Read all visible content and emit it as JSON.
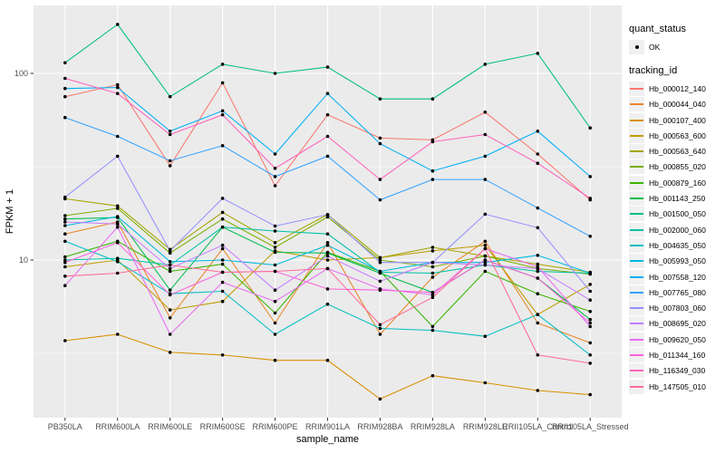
{
  "figure": {
    "y_axis_title": "FPKM + 1",
    "x_axis_title": "sample_name",
    "legend": {
      "quant_status_title": "quant_status",
      "quant_ok_label": "OK",
      "tracking_title": "tracking_id"
    },
    "colors": {
      "panel_bg": "#EBEBEB",
      "grid": "#FFFFFF",
      "tick_mark": "#333333",
      "axis_text": "#4D4D4D",
      "title_text": "#000000",
      "legend_key_bg": "#F0F0F0",
      "point": "#000000"
    }
  },
  "chart_data": {
    "type": "line",
    "title": "",
    "xlabel": "sample_name",
    "ylabel": "FPKM + 1",
    "y_scale": "log10",
    "ylim": [
      1.4,
      230
    ],
    "y_major_ticks": [
      100,
      10
    ],
    "y_minor_ticks": [
      31.6,
      3.16
    ],
    "grid": "on",
    "legend_position": "right",
    "point_shape": "filled-black-circle",
    "quant_status": "OK",
    "categories": [
      "PB350LA",
      "RRIM600LA",
      "RRIM600LE",
      "RRIM600SE",
      "RRIM600PE",
      "RRIM901LA",
      "RRIM928BA",
      "RRIM928LA",
      "RRIM928LE",
      "RRII105LA_Control",
      "RRII105LA_Stressed"
    ],
    "series": [
      {
        "name": "Hb_000012_140",
        "color": "#F8766D",
        "values": [
          75,
          87,
          32,
          89,
          25,
          60,
          45,
          44,
          62,
          37,
          21
        ]
      },
      {
        "name": "Hb_000044_040",
        "color": "#E88526",
        "values": [
          13.8,
          16,
          4.9,
          11.5,
          4.6,
          12.4,
          4,
          8.1,
          12.6,
          4.6,
          3.6
        ]
      },
      {
        "name": "Hb_000107_400",
        "color": "#D89000",
        "values": [
          3.7,
          4,
          3.2,
          3.1,
          2.9,
          2.9,
          1.8,
          2.4,
          2.2,
          2,
          1.9
        ]
      },
      {
        "name": "Hb_000563_600",
        "color": "#C09B00",
        "values": [
          9.2,
          10,
          5.4,
          6,
          11.2,
          10,
          10.3,
          11.2,
          12,
          5.1,
          7.4
        ]
      },
      {
        "name": "Hb_000563_640",
        "color": "#A3A500",
        "values": [
          21.3,
          19.5,
          11.4,
          18,
          12.4,
          17.5,
          10.3,
          11.7,
          10.5,
          9.5,
          8.6
        ]
      },
      {
        "name": "Hb_000855_020",
        "color": "#7CAE00",
        "values": [
          17.3,
          18.9,
          10.9,
          16.6,
          11.7,
          17,
          10,
          9.2,
          10.5,
          9,
          8.4
        ]
      },
      {
        "name": "Hb_000879_160",
        "color": "#39B600",
        "values": [
          10.4,
          12.6,
          8.7,
          9.5,
          5.2,
          11,
          8.7,
          4.4,
          8.7,
          6.6,
          5.3
        ]
      },
      {
        "name": "Hb_001143_250",
        "color": "#00BB4E",
        "values": [
          16.6,
          16.9,
          6.9,
          15,
          11,
          10.9,
          8.5,
          6.7,
          10,
          8,
          4.8
        ]
      },
      {
        "name": "Hb_001500_050",
        "color": "#00BF7D",
        "values": [
          114,
          183,
          75,
          112,
          100,
          108,
          73,
          73,
          112,
          128,
          51
        ]
      },
      {
        "name": "Hb_002000_060",
        "color": "#00C1A3",
        "values": [
          10,
          10.2,
          9.4,
          15,
          14.3,
          13.8,
          8.6,
          8.5,
          9.4,
          8.7,
          8.5
        ]
      },
      {
        "name": "Hb_004635_050",
        "color": "#00BFC4",
        "values": [
          12.6,
          9.8,
          6.6,
          6.8,
          4,
          5.8,
          4.3,
          4.2,
          3.9,
          5.1,
          3.1
        ]
      },
      {
        "name": "Hb_005993_050",
        "color": "#00BAE0",
        "values": [
          15.3,
          17.1,
          9.8,
          10,
          9.4,
          12,
          8.7,
          9.7,
          9.7,
          10.6,
          8.5
        ]
      },
      {
        "name": "Hb_007558_120",
        "color": "#00B0F6",
        "values": [
          83,
          84,
          49,
          63,
          37,
          78,
          42,
          30,
          36,
          49,
          28
        ]
      },
      {
        "name": "Hb_007765_080",
        "color": "#35A2FF",
        "values": [
          58,
          46,
          34,
          41,
          28,
          36,
          21,
          27,
          27,
          19,
          13.4
        ]
      },
      {
        "name": "Hb_007803_060",
        "color": "#9590FF",
        "values": [
          21.7,
          36,
          11.2,
          21.4,
          15.2,
          17.5,
          9.7,
          9.7,
          17.6,
          14.9,
          6.8
        ]
      },
      {
        "name": "Hb_008695_020",
        "color": "#C77CFF",
        "values": [
          16,
          15.6,
          9,
          12,
          6.9,
          10.5,
          7.7,
          9.7,
          9.4,
          9,
          6.1
        ]
      },
      {
        "name": "Hb_009620_050",
        "color": "#E76BF3",
        "values": [
          7.3,
          15,
          4,
          7.6,
          6,
          9,
          7,
          6.5,
          11.5,
          9.2,
          4.4
        ]
      },
      {
        "name": "Hb_011344_160",
        "color": "#FA62DB",
        "values": [
          9.7,
          12.4,
          6.5,
          8.6,
          8.7,
          7,
          6.9,
          6.7,
          10,
          8,
          4.6
        ]
      },
      {
        "name": "Hb_116349_030",
        "color": "#FF62BC",
        "values": [
          94,
          78,
          47,
          60,
          31,
          46,
          27,
          43,
          47,
          33,
          21.4
        ]
      },
      {
        "name": "Hb_147505_010",
        "color": "#FF6A98",
        "values": [
          8.2,
          8.5,
          9.4,
          8.6,
          8.7,
          9,
          4.5,
          6.3,
          11.5,
          3.1,
          2.8
        ]
      }
    ]
  }
}
